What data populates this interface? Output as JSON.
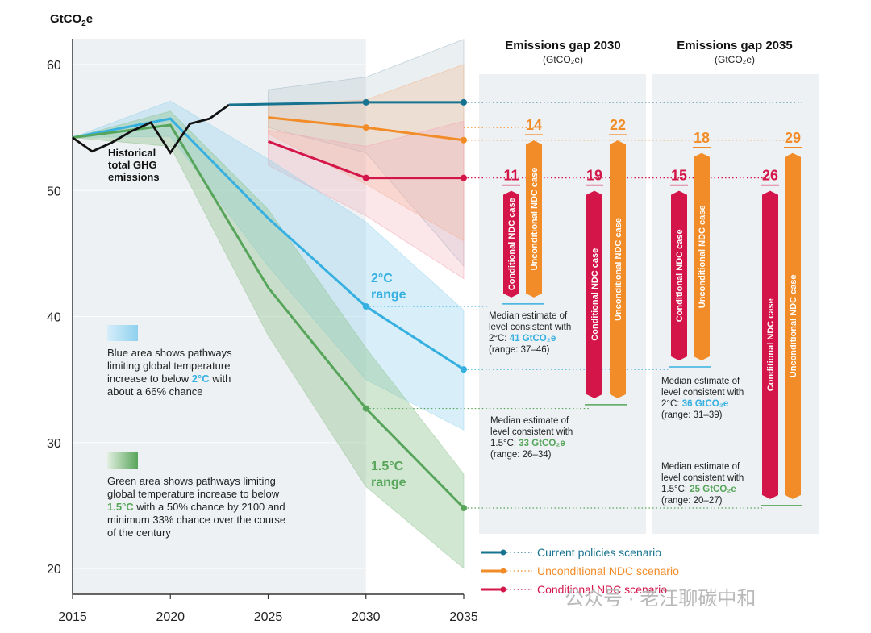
{
  "chart_data": {
    "type": "line",
    "ylabel_main": "GtCO",
    "ylabel_sub": "2",
    "ylabel_tail": "e",
    "xlim": [
      2015,
      2035
    ],
    "ylim": [
      18,
      63
    ],
    "x_ticks": [
      "2015",
      "2020",
      "2025",
      "2030",
      "2035"
    ],
    "y_ticks": [
      "20",
      "30",
      "40",
      "50",
      "60"
    ],
    "historical": {
      "label_lines": [
        "Historical",
        "total GHG",
        "emissions"
      ],
      "x": [
        2015,
        2016,
        2017,
        2018,
        2019,
        2020,
        2021,
        2022,
        2023
      ],
      "y": [
        54.2,
        53.1,
        53.8,
        54.7,
        55.4,
        53.0,
        55.3,
        55.7,
        56.8
      ]
    },
    "current_policies": {
      "name": "Current policies scenario",
      "color": "#17738f",
      "x": [
        2023,
        2030,
        2035
      ],
      "y": [
        56.8,
        57.0,
        57.0
      ]
    },
    "unconditional_ndc": {
      "name": "Unconditional NDC scenario",
      "color": "#f28c28",
      "x": [
        2025,
        2030,
        2035
      ],
      "y": [
        55.8,
        55.0,
        54.0
      ]
    },
    "conditional_ndc": {
      "name": "Conditional NDC scenario",
      "color": "#d4154a",
      "x": [
        2025,
        2030,
        2035
      ],
      "y": [
        53.9,
        51.0,
        51.0
      ]
    },
    "pathway_2c": {
      "name_lines": [
        "2°C",
        "range"
      ],
      "color": "#36b0e0",
      "x": [
        2015,
        2020,
        2025,
        2030,
        2035
      ],
      "y": [
        54.2,
        55.7,
        47.8,
        40.8,
        35.8
      ],
      "upper": [
        54.2,
        57.1,
        52.5,
        47.5,
        40.5
      ],
      "lower": [
        54.2,
        54.3,
        44.0,
        35.0,
        31.0
      ]
    },
    "pathway_15c": {
      "name_lines": [
        "1.5°C",
        "range"
      ],
      "color": "#57a55a",
      "x": [
        2015,
        2020,
        2025,
        2030,
        2035
      ],
      "y": [
        54.2,
        55.2,
        42.3,
        32.7,
        24.8
      ],
      "upper": [
        54.2,
        56.3,
        48.5,
        37.5,
        27.5
      ],
      "lower": [
        54.2,
        53.5,
        38.5,
        26.5,
        20.0
      ]
    },
    "legend_2c_text": [
      {
        "t": "Blue area shows pathways",
        "c": "#222222"
      },
      {
        "t": "limiting global temperature",
        "c": "#222222"
      },
      {
        "p": [
          {
            "t": "increase to below ",
            "c": "#222222"
          },
          {
            "t": "2°C",
            "c": "#36b0e0",
            "b": true
          },
          {
            "t": " with",
            "c": "#222222"
          }
        ]
      },
      {
        "t": "about a 66% chance",
        "c": "#222222"
      }
    ],
    "legend_15c_text": [
      {
        "t": "Green area shows pathways limiting",
        "c": "#222222"
      },
      {
        "t": "global temperature increase to below",
        "c": "#222222"
      },
      {
        "p": [
          {
            "t": "1.5°C",
            "c": "#57a55a",
            "b": true
          },
          {
            "t": " with a 50% chance by 2100 and",
            "c": "#222222"
          }
        ]
      },
      {
        "t": "minimum 33% chance over the course",
        "c": "#222222"
      },
      {
        "t": "of the century",
        "c": "#222222"
      }
    ],
    "gap_2030": {
      "title": "Emissions gap 2030",
      "unit": "(GtCO₂e)",
      "bars": [
        {
          "value": "11",
          "label": "Conditional NDC case",
          "color": "#d4154a",
          "top": 51.0,
          "bottom": 41.0
        },
        {
          "value": "14",
          "label": "Unconditional NDC case",
          "color": "#f28c28",
          "top": 55.0,
          "bottom": 41.0
        },
        {
          "value": "19",
          "label": "Conditional NDC case",
          "color": "#d4154a",
          "top": 51.0,
          "bottom": 33.0
        },
        {
          "value": "22",
          "label": "Unconditional NDC case",
          "color": "#f28c28",
          "top": 55.0,
          "bottom": 33.0
        }
      ],
      "median_2c": {
        "lines": [
          "Median estimate of",
          "level consistent with"
        ],
        "prefix": "2°C: ",
        "value": "41 GtCO₂e",
        "range": "(range: 37–46)"
      },
      "median_15c": {
        "lines": [
          "Median estimate of",
          "level consistent with"
        ],
        "prefix": "1.5°C: ",
        "value": "33 GtCO₂e",
        "range": "(range: 26–34)"
      }
    },
    "gap_2035": {
      "title": "Emissions gap 2035",
      "unit": "(GtCO₂e)",
      "bars": [
        {
          "value": "15",
          "label": "Conditional NDC case",
          "color": "#d4154a",
          "top": 51.0,
          "bottom": 36.0
        },
        {
          "value": "18",
          "label": "Unconditional NDC case",
          "color": "#f28c28",
          "top": 54.0,
          "bottom": 36.0
        },
        {
          "value": "26",
          "label": "Conditional NDC case",
          "color": "#d4154a",
          "top": 51.0,
          "bottom": 25.0
        },
        {
          "value": "29",
          "label": "Unconditional NDC case",
          "color": "#f28c28",
          "top": 54.0,
          "bottom": 25.0
        }
      ],
      "median_2c": {
        "lines": [
          "Median estimate of",
          "level consistent with"
        ],
        "prefix": "2°C: ",
        "value": "36 GtCO₂e",
        "range": "(range: 31–39)"
      },
      "median_15c": {
        "lines": [
          "Median estimate of",
          "level consistent with"
        ],
        "prefix": "1.5°C: ",
        "value": "25 GtCO₂e",
        "range": "(range: 20–27)"
      }
    },
    "legend": [
      {
        "name": "Current policies scenario",
        "color": "#17738f"
      },
      {
        "name": "Unconditional NDC scenario",
        "color": "#f28c28"
      },
      {
        "name": "Conditional NDC scenario",
        "color": "#d4154a"
      }
    ],
    "watermark": "公众号 · 老汪聊碳中和"
  }
}
